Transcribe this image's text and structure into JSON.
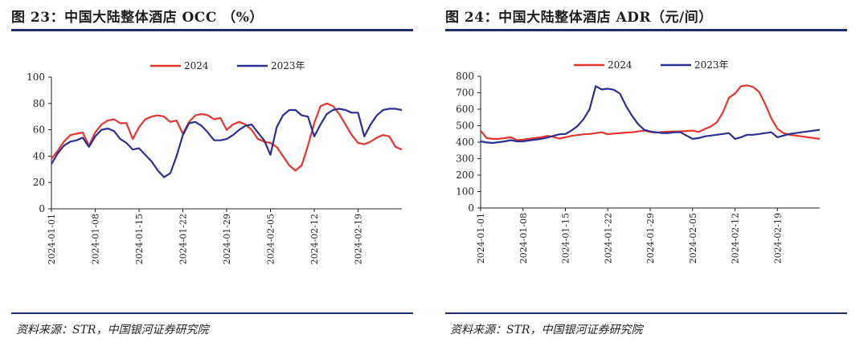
{
  "figures": [
    {
      "title": "图 23：中国大陆整体酒店 OCC （%）",
      "source": "资料来源：STR，中国银河证券研究院"
    },
    {
      "title": "图 24：中国大陆整体酒店 ADR（元/间）",
      "source": "资料来源：STR，中国银河证券研究院"
    }
  ],
  "colors": {
    "series_2024": "#e8342f",
    "series_2023": "#2b2f8f",
    "rule": "#1f2f6e"
  },
  "chart_data": [
    {
      "type": "line",
      "title": "",
      "ylim": [
        0,
        100
      ],
      "yticks": [
        0,
        20,
        40,
        60,
        80,
        100
      ],
      "xticks": [
        "2024-01-01",
        "2024-01-08",
        "2024-01-15",
        "2024-01-22",
        "2024-01-29",
        "2024-02-05",
        "2024-02-12",
        "2024-02-19"
      ],
      "x_start": "2024-01-01",
      "grid": false,
      "legend": "top-center",
      "series": [
        {
          "name": "2024",
          "values": [
            38,
            44,
            51,
            56,
            57,
            58,
            48,
            58,
            64,
            67,
            68,
            65,
            65,
            53,
            62,
            68,
            70,
            71,
            70,
            66,
            67,
            57,
            66,
            71,
            72,
            71,
            68,
            69,
            60,
            64,
            66,
            64,
            60,
            53,
            51,
            50,
            47,
            40,
            33,
            29,
            33,
            48,
            65,
            78,
            80,
            78,
            72,
            64,
            56,
            50,
            49,
            51,
            54,
            56,
            55,
            47,
            45
          ]
        },
        {
          "name": "2023年",
          "values": [
            34,
            42,
            48,
            51,
            52,
            54,
            47,
            55,
            60,
            61,
            59,
            53,
            50,
            45,
            46,
            41,
            36,
            29,
            24,
            27,
            40,
            56,
            65,
            66,
            63,
            58,
            52,
            52,
            53,
            56,
            60,
            63,
            64,
            58,
            52,
            41,
            62,
            71,
            75,
            75,
            71,
            70,
            55,
            64,
            72,
            75,
            76,
            75,
            73,
            73,
            55,
            64,
            71,
            75,
            76,
            76,
            75
          ]
        }
      ]
    },
    {
      "type": "line",
      "title": "",
      "ylim": [
        0,
        800
      ],
      "yticks": [
        0,
        100,
        200,
        300,
        400,
        500,
        600,
        700,
        800
      ],
      "xticks": [
        "2024-01-01",
        "2024-01-08",
        "2024-01-15",
        "2024-01-22",
        "2024-01-29",
        "2024-02-05",
        "2024-02-12",
        "2024-02-19"
      ],
      "x_start": "2024-01-01",
      "grid": false,
      "legend": "top-center",
      "series": [
        {
          "name": "2024",
          "values": [
            470,
            425,
            420,
            420,
            425,
            430,
            412,
            415,
            420,
            425,
            430,
            438,
            432,
            422,
            430,
            438,
            443,
            448,
            450,
            455,
            460,
            448,
            452,
            455,
            458,
            460,
            465,
            470,
            462,
            458,
            462,
            464,
            465,
            466,
            468,
            470,
            462,
            480,
            495,
            520,
            580,
            670,
            695,
            740,
            745,
            735,
            705,
            630,
            545,
            482,
            455,
            445,
            440,
            435,
            430,
            425,
            420
          ]
        },
        {
          "name": "2023年",
          "values": [
            405,
            398,
            395,
            400,
            405,
            412,
            405,
            405,
            410,
            415,
            420,
            428,
            438,
            448,
            450,
            470,
            498,
            540,
            600,
            740,
            720,
            725,
            718,
            695,
            620,
            560,
            510,
            475,
            465,
            460,
            455,
            455,
            460,
            460,
            440,
            420,
            425,
            435,
            440,
            445,
            450,
            455,
            420,
            430,
            445,
            445,
            450,
            455,
            460,
            430,
            440,
            450,
            455,
            460,
            465,
            470,
            475
          ]
        }
      ]
    }
  ]
}
